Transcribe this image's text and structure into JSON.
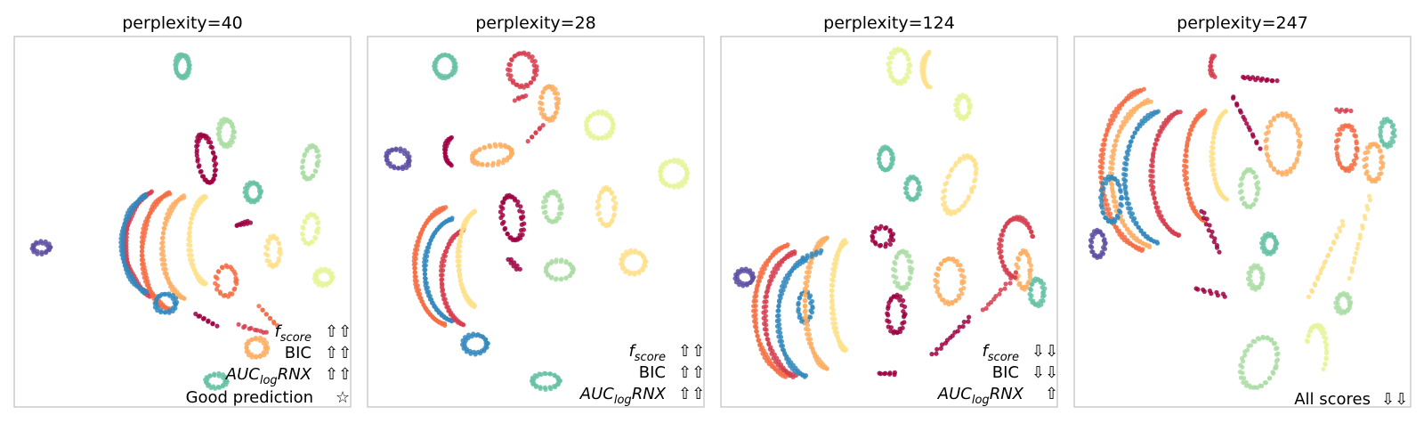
{
  "chart_data": [
    {
      "type": "scatter",
      "title": "perplexity=40",
      "annotations": [
        {
          "label": "f",
          "sub": "score",
          "arrows": "⇧⇧"
        },
        {
          "label": "BIC",
          "arrows": "⇧⇧"
        },
        {
          "label": "AUC",
          "sub": "log",
          "label_after": "RNX",
          "arrows": "⇧⇧"
        },
        {
          "label": "Good prediction",
          "arrows": "☆"
        }
      ]
    },
    {
      "type": "scatter",
      "title": "perplexity=28",
      "annotations": [
        {
          "label": "f",
          "sub": "score",
          "arrows": "⇧⇧"
        },
        {
          "label": "BIC",
          "arrows": "⇧⇧"
        },
        {
          "label": "AUC",
          "sub": "log",
          "label_after": "RNX",
          "arrows": "⇧⇧"
        }
      ]
    },
    {
      "type": "scatter",
      "title": "perplexity=124",
      "annotations": [
        {
          "label": "f",
          "sub": "score",
          "arrows": "⇩⇩"
        },
        {
          "label": "BIC",
          "arrows": "⇩⇩"
        },
        {
          "label": "AUC",
          "sub": "log",
          "label_after": "RNX",
          "arrows": "⇧"
        }
      ]
    },
    {
      "type": "scatter",
      "title": "perplexity=247",
      "annotations": [
        {
          "label": "All scores",
          "arrows": "⇩⇩"
        }
      ]
    }
  ],
  "palette": [
    "#5e4fa2",
    "#3288bd",
    "#66c2a5",
    "#abdda4",
    "#e6f598",
    "#fee08b",
    "#fdae61",
    "#f46d43",
    "#d53e4f",
    "#9e0142"
  ]
}
